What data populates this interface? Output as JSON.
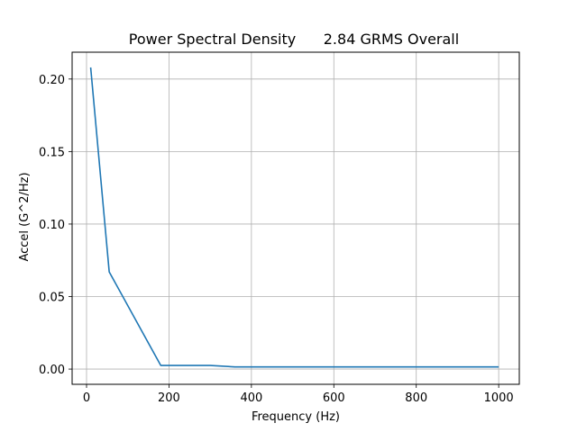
{
  "chart_data": {
    "type": "line",
    "title": "Power Spectral Density      2.84 GRMS Overall",
    "xlabel": "Frequency (Hz)",
    "ylabel": "Accel (G^2/Hz)",
    "xlim": [
      -35,
      1050
    ],
    "ylim": [
      -0.0105,
      0.2185
    ],
    "xticks": [
      0,
      200,
      400,
      600,
      800,
      1000
    ],
    "xtick_labels": [
      "0",
      "200",
      "400",
      "600",
      "800",
      "1000"
    ],
    "yticks": [
      0.0,
      0.05,
      0.1,
      0.15,
      0.2
    ],
    "ytick_labels": [
      "0.00",
      "0.05",
      "0.10",
      "0.15",
      "0.20"
    ],
    "grid": true,
    "series": [
      {
        "color": "#1f77b4",
        "x": [
          10,
          55,
          180,
          300,
          360,
          1000
        ],
        "y": [
          0.208,
          0.067,
          0.0025,
          0.0025,
          0.0015,
          0.0015
        ]
      }
    ]
  }
}
